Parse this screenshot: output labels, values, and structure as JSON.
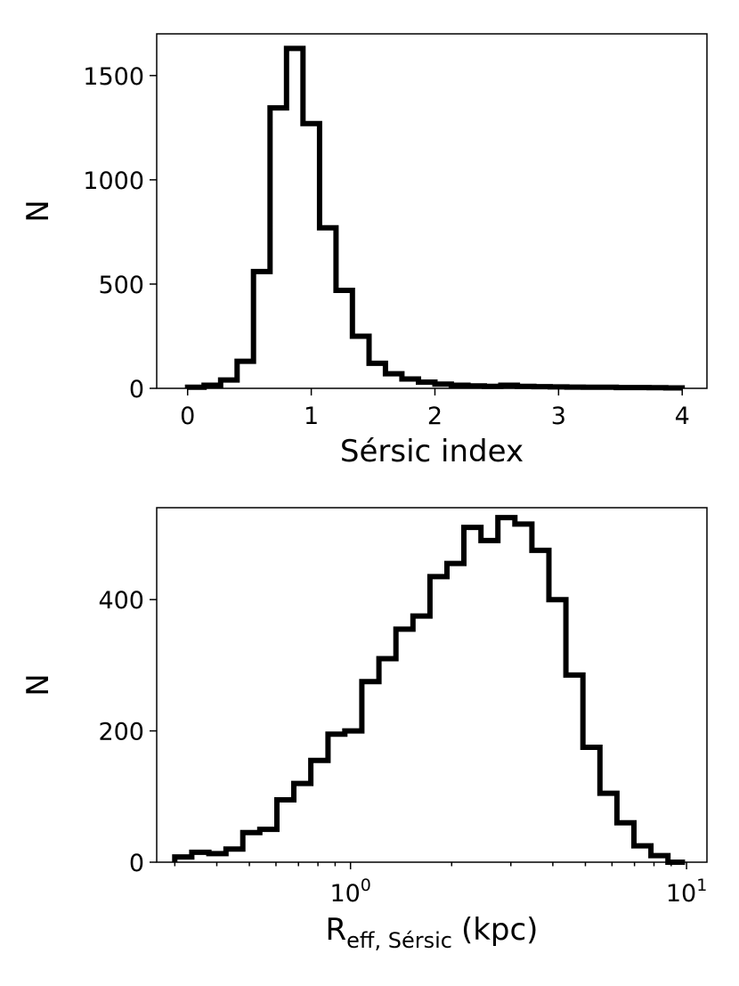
{
  "chart_data": [
    {
      "type": "histogram",
      "xlabel": "Sérsic index",
      "ylabel": "N",
      "xlim": [
        -0.25,
        4.2
      ],
      "ylim": [
        0,
        1700
      ],
      "xticks": [
        0,
        1,
        2,
        3,
        4
      ],
      "xtick_labels": [
        "0",
        "1",
        "2",
        "3",
        "4"
      ],
      "yticks": [
        0,
        500,
        1000,
        1500
      ],
      "ytick_labels": [
        "0",
        "500",
        "1000",
        "1500"
      ],
      "bins": [
        0,
        0.133,
        0.267,
        0.4,
        0.533,
        0.667,
        0.8,
        0.933,
        1.067,
        1.2,
        1.333,
        1.467,
        1.6,
        1.733,
        1.867,
        2.0,
        2.133,
        2.267,
        2.4,
        2.533,
        2.667,
        2.8,
        2.933,
        3.067,
        3.2,
        3.333,
        3.467,
        3.6,
        3.733,
        3.867,
        4.0
      ],
      "counts": [
        5,
        15,
        40,
        130,
        560,
        1345,
        1630,
        1270,
        770,
        470,
        250,
        120,
        70,
        45,
        30,
        20,
        15,
        12,
        10,
        15,
        10,
        8,
        7,
        6,
        5,
        5,
        4,
        4,
        3,
        2
      ]
    },
    {
      "type": "histogram",
      "xscale": "log",
      "xlabel_main": "R",
      "xlabel_sub": "eff, Sérsic",
      "xlabel_unit": "(kpc)",
      "ylabel": "N",
      "xlim": [
        0.265,
        11.5
      ],
      "ylim": [
        0,
        540
      ],
      "xticks": [
        1,
        10
      ],
      "xtick_base": "10",
      "xtick_exponents": [
        "0",
        "1"
      ],
      "yticks": [
        0,
        200,
        400
      ],
      "ytick_labels": [
        "0",
        "200",
        "400"
      ],
      "bins": [
        0.3,
        0.337,
        0.379,
        0.426,
        0.478,
        0.537,
        0.604,
        0.678,
        0.762,
        0.857,
        0.962,
        1.081,
        1.215,
        1.365,
        1.534,
        1.723,
        1.936,
        2.175,
        2.444,
        2.746,
        3.085,
        3.466,
        3.894,
        4.376,
        4.916,
        5.524,
        6.206,
        6.973,
        7.834,
        8.802,
        9.9
      ],
      "counts": [
        8,
        15,
        13,
        20,
        45,
        50,
        95,
        120,
        155,
        195,
        200,
        275,
        310,
        355,
        375,
        435,
        455,
        510,
        490,
        525,
        515,
        475,
        400,
        285,
        175,
        105,
        60,
        25,
        10,
        0
      ]
    }
  ]
}
